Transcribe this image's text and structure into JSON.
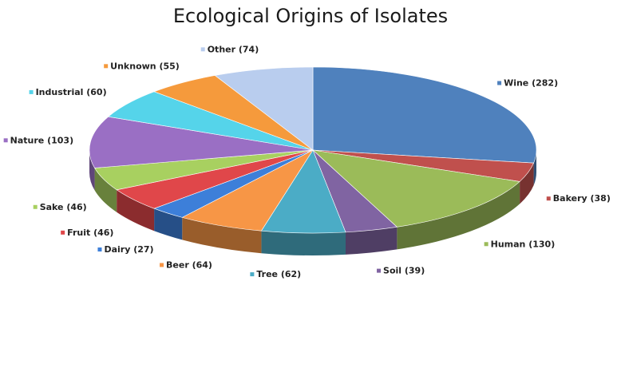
{
  "chart_data": {
    "type": "pie",
    "title": "Ecological Origins of Isolates",
    "slices": [
      {
        "label": "Wine",
        "value": 282,
        "text": "Wine (282)",
        "color": "#4f81bd"
      },
      {
        "label": "Bakery",
        "value": 38,
        "text": "Bakery (38)",
        "color": "#c0504d"
      },
      {
        "label": "Human",
        "value": 130,
        "text": "Human (130)",
        "color": "#9bbb59"
      },
      {
        "label": "Soil",
        "value": 39,
        "text": "Soil (39)",
        "color": "#8064a2"
      },
      {
        "label": "Tree",
        "value": 62,
        "text": "Tree (62)",
        "color": "#4bacc6"
      },
      {
        "label": "Beer",
        "value": 64,
        "text": "Beer (64)",
        "color": "#f79646"
      },
      {
        "label": "Dairy",
        "value": 27,
        "text": "Dairy (27)",
        "color": "#3d7fd9"
      },
      {
        "label": "Fruit",
        "value": 46,
        "text": "Fruit (46)",
        "color": "#e0474a"
      },
      {
        "label": "Sake",
        "value": 46,
        "text": "Sake (46)",
        "color": "#a8d060"
      },
      {
        "label": "Nature",
        "value": 103,
        "text": "Nature (103)",
        "color": "#9a6fc4"
      },
      {
        "label": "Industrial",
        "value": 60,
        "text": "Industrial (60)",
        "color": "#55d4ea"
      },
      {
        "label": "Unknown",
        "value": 55,
        "text": "Unknown (55)",
        "color": "#f59a3c"
      },
      {
        "label": "Other",
        "value": 74,
        "text": "Other (74)",
        "color": "#b9cdee"
      }
    ],
    "legend": "none",
    "style": "3d-pie"
  }
}
